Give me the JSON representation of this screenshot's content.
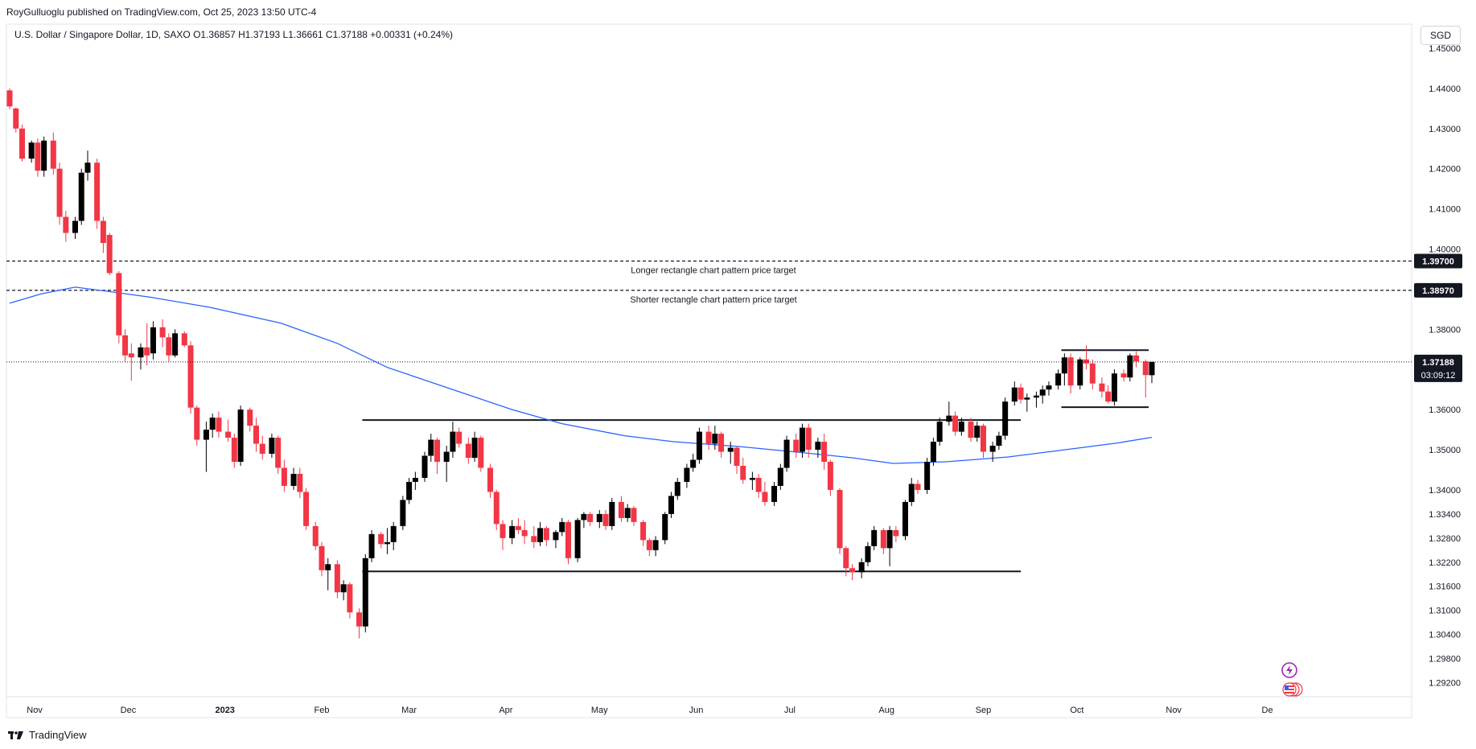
{
  "header": {
    "publisher_line": "RoyGulluoglu published on TradingView.com, Oct 25, 2023 13:50 UTC-4"
  },
  "legend": {
    "text": "U.S. Dollar / Singapore Dollar, 1D, SAXO  O1.36857  H1.37193  L1.36661  C1.37188  +0.00331 (+0.24%)"
  },
  "currency_button": "SGD",
  "footer": {
    "brand": "TradingView"
  },
  "colors": {
    "up": "#000000",
    "down": "#f23645",
    "ma": "#2962ff",
    "price_tag": "#131722"
  },
  "chart_data": {
    "type": "candlestick",
    "symbol": "U.S. Dollar / Singapore Dollar",
    "interval": "1D",
    "exchange": "SAXO",
    "ylim": [
      1.2885,
      1.456
    ],
    "y_ticks": [
      "1.45000",
      "1.44000",
      "1.43000",
      "1.42000",
      "1.41000",
      "1.40000",
      "1.38000",
      "1.36000",
      "1.35000",
      "1.34000",
      "1.33400",
      "1.32800",
      "1.32200",
      "1.31600",
      "1.31000",
      "1.30400",
      "1.29800",
      "1.29200"
    ],
    "x_ticks": [
      "Nov",
      "Dec",
      "2023",
      "Feb",
      "Mar",
      "Apr",
      "May",
      "Jun",
      "Jul",
      "Aug",
      "Sep",
      "Oct",
      "Nov",
      "De"
    ],
    "last_price": {
      "value": "1.37188",
      "countdown": "03:09:12"
    },
    "price_levels": [
      {
        "value": "1.39700",
        "label": "Longer rectangle chart pattern price target"
      },
      {
        "value": "1.38970",
        "label": "Shorter rectangle chart pattern price target"
      }
    ],
    "rectangles": [
      {
        "name": "long-rectangle",
        "from": "2023-02-14",
        "to": "2023-09-13",
        "top": 1.3574,
        "bottom": 1.3197
      },
      {
        "name": "short-rectangle",
        "from": "2023-09-26",
        "to": "2023-10-24",
        "top": 1.3748,
        "bottom": 1.3606
      }
    ],
    "moving_average": [
      [
        "2022-10-24",
        1.3865
      ],
      [
        "2022-11-03",
        1.3888
      ],
      [
        "2022-11-14",
        1.3905
      ],
      [
        "2022-11-24",
        1.3895
      ],
      [
        "2022-12-08",
        1.388
      ],
      [
        "2022-12-27",
        1.3855
      ],
      [
        "2023-01-19",
        1.3815
      ],
      [
        "2023-02-06",
        1.3765
      ],
      [
        "2023-02-22",
        1.3705
      ],
      [
        "2023-03-15",
        1.365
      ],
      [
        "2023-04-03",
        1.36
      ],
      [
        "2023-04-19",
        1.3565
      ],
      [
        "2023-05-09",
        1.3535
      ],
      [
        "2023-05-25",
        1.352
      ],
      [
        "2023-06-15",
        1.3508
      ],
      [
        "2023-07-06",
        1.3492
      ],
      [
        "2023-07-21",
        1.348
      ],
      [
        "2023-08-03",
        1.3466
      ],
      [
        "2023-08-20",
        1.347
      ],
      [
        "2023-09-09",
        1.3482
      ],
      [
        "2023-09-27",
        1.35
      ],
      [
        "2023-10-14",
        1.3517
      ],
      [
        "2023-10-25",
        1.3531
      ]
    ],
    "ohlc": [
      [
        "2022-10-24",
        1.4395,
        1.44,
        1.4348,
        1.4355
      ],
      [
        "2022-10-26",
        1.435,
        1.4352,
        1.429,
        1.43
      ],
      [
        "2022-10-28",
        1.43,
        1.431,
        1.4218,
        1.4225
      ],
      [
        "2022-10-31",
        1.4225,
        1.427,
        1.4215,
        1.4265
      ],
      [
        "2022-11-02",
        1.4265,
        1.4275,
        1.418,
        1.4195
      ],
      [
        "2022-11-04",
        1.4195,
        1.428,
        1.418,
        1.427
      ],
      [
        "2022-11-07",
        1.427,
        1.429,
        1.4185,
        1.42
      ],
      [
        "2022-11-09",
        1.42,
        1.4215,
        1.406,
        1.408
      ],
      [
        "2022-11-11",
        1.408,
        1.4095,
        1.4018,
        1.404
      ],
      [
        "2022-11-14",
        1.404,
        1.408,
        1.4025,
        1.407
      ],
      [
        "2022-11-16",
        1.407,
        1.42,
        1.406,
        1.419
      ],
      [
        "2022-11-18",
        1.419,
        1.4245,
        1.417,
        1.4215
      ],
      [
        "2022-11-21",
        1.4215,
        1.4225,
        1.405,
        1.407
      ],
      [
        "2022-11-23",
        1.407,
        1.408,
        1.399,
        1.4015
      ],
      [
        "2022-11-25",
        1.4035,
        1.404,
        1.3935,
        1.394
      ],
      [
        "2022-11-28",
        1.394,
        1.3945,
        1.3765,
        1.3785
      ],
      [
        "2022-11-30",
        1.3785,
        1.38,
        1.372,
        1.3735
      ],
      [
        "2022-12-02",
        1.374,
        1.3765,
        1.3672,
        1.373
      ],
      [
        "2022-12-05",
        1.373,
        1.3765,
        1.37,
        1.3755
      ],
      [
        "2022-12-07",
        1.3755,
        1.3815,
        1.371,
        1.3735
      ],
      [
        "2022-12-09",
        1.374,
        1.382,
        1.3725,
        1.3805
      ],
      [
        "2022-12-12",
        1.3805,
        1.3825,
        1.3755,
        1.378
      ],
      [
        "2022-12-14",
        1.378,
        1.379,
        1.372,
        1.3735
      ],
      [
        "2022-12-16",
        1.3735,
        1.38,
        1.373,
        1.379
      ],
      [
        "2022-12-19",
        1.379,
        1.3795,
        1.3755,
        1.376
      ],
      [
        "2022-12-21",
        1.376,
        1.377,
        1.359,
        1.3605
      ],
      [
        "2022-12-23",
        1.3605,
        1.361,
        1.351,
        1.3525
      ],
      [
        "2022-12-26",
        1.3525,
        1.357,
        1.3445,
        1.355
      ],
      [
        "2022-12-28",
        1.355,
        1.359,
        1.353,
        1.358
      ],
      [
        "2022-12-30",
        1.358,
        1.3595,
        1.353,
        1.3545
      ],
      [
        "2023-01-02",
        1.3545,
        1.3575,
        1.352,
        1.353
      ],
      [
        "2023-01-04",
        1.353,
        1.354,
        1.3455,
        1.347
      ],
      [
        "2023-01-06",
        1.347,
        1.361,
        1.346,
        1.36
      ],
      [
        "2023-01-09",
        1.36,
        1.3605,
        1.3545,
        1.356
      ],
      [
        "2023-01-11",
        1.356,
        1.358,
        1.3495,
        1.3515
      ],
      [
        "2023-01-13",
        1.3515,
        1.3535,
        1.3475,
        1.349
      ],
      [
        "2023-01-16",
        1.349,
        1.354,
        1.348,
        1.353
      ],
      [
        "2023-01-18",
        1.353,
        1.3535,
        1.344,
        1.3455
      ],
      [
        "2023-01-20",
        1.3455,
        1.3475,
        1.3395,
        1.341
      ],
      [
        "2023-01-23",
        1.341,
        1.3455,
        1.34,
        1.344
      ],
      [
        "2023-01-25",
        1.344,
        1.3455,
        1.338,
        1.3395
      ],
      [
        "2023-01-27",
        1.3395,
        1.3405,
        1.33,
        1.331
      ],
      [
        "2023-01-30",
        1.331,
        1.332,
        1.325,
        1.326
      ],
      [
        "2023-02-01",
        1.326,
        1.327,
        1.3185,
        1.32
      ],
      [
        "2023-02-03",
        1.32,
        1.323,
        1.315,
        1.3215
      ],
      [
        "2023-02-06",
        1.3215,
        1.3225,
        1.313,
        1.3145
      ],
      [
        "2023-02-08",
        1.3145,
        1.3175,
        1.3125,
        1.3165
      ],
      [
        "2023-02-10",
        1.3165,
        1.317,
        1.308,
        1.3095
      ],
      [
        "2023-02-13",
        1.3095,
        1.3105,
        1.303,
        1.306
      ],
      [
        "2023-02-15",
        1.306,
        1.324,
        1.3045,
        1.323
      ],
      [
        "2023-02-17",
        1.323,
        1.33,
        1.322,
        1.329
      ],
      [
        "2023-02-20",
        1.329,
        1.3295,
        1.3255,
        1.3265
      ],
      [
        "2023-02-22",
        1.3265,
        1.3305,
        1.324,
        1.327
      ],
      [
        "2023-02-24",
        1.327,
        1.332,
        1.325,
        1.331
      ],
      [
        "2023-02-27",
        1.331,
        1.3385,
        1.33,
        1.3375
      ],
      [
        "2023-03-01",
        1.3375,
        1.343,
        1.3365,
        1.342
      ],
      [
        "2023-03-03",
        1.342,
        1.3445,
        1.34,
        1.343
      ],
      [
        "2023-03-06",
        1.343,
        1.3495,
        1.342,
        1.3485
      ],
      [
        "2023-03-08",
        1.3485,
        1.354,
        1.347,
        1.3525
      ],
      [
        "2023-03-10",
        1.3525,
        1.353,
        1.344,
        1.347
      ],
      [
        "2023-03-13",
        1.347,
        1.351,
        1.342,
        1.3495
      ],
      [
        "2023-03-15",
        1.3495,
        1.357,
        1.348,
        1.3545
      ],
      [
        "2023-03-17",
        1.3545,
        1.3555,
        1.3505,
        1.3515
      ],
      [
        "2023-03-20",
        1.3515,
        1.353,
        1.3465,
        1.348
      ],
      [
        "2023-03-22",
        1.348,
        1.3545,
        1.347,
        1.353
      ],
      [
        "2023-03-24",
        1.353,
        1.3535,
        1.3445,
        1.3455
      ],
      [
        "2023-03-27",
        1.3455,
        1.3465,
        1.338,
        1.3395
      ],
      [
        "2023-03-29",
        1.3395,
        1.34,
        1.33,
        1.3315
      ],
      [
        "2023-03-31",
        1.3315,
        1.3325,
        1.325,
        1.328
      ],
      [
        "2023-04-03",
        1.328,
        1.3325,
        1.3265,
        1.331
      ],
      [
        "2023-04-05",
        1.331,
        1.333,
        1.329,
        1.33
      ],
      [
        "2023-04-07",
        1.33,
        1.3325,
        1.3265,
        1.3285
      ],
      [
        "2023-04-10",
        1.3285,
        1.331,
        1.3255,
        1.327
      ],
      [
        "2023-04-12",
        1.327,
        1.332,
        1.326,
        1.3305
      ],
      [
        "2023-04-14",
        1.3305,
        1.331,
        1.326,
        1.3275
      ],
      [
        "2023-04-17",
        1.3275,
        1.33,
        1.3255,
        1.3295
      ],
      [
        "2023-04-19",
        1.3295,
        1.333,
        1.3285,
        1.332
      ],
      [
        "2023-04-21",
        1.332,
        1.3325,
        1.3215,
        1.323
      ],
      [
        "2023-04-24",
        1.323,
        1.333,
        1.322,
        1.3325
      ],
      [
        "2023-04-26",
        1.3325,
        1.3345,
        1.3305,
        1.334
      ],
      [
        "2023-04-28",
        1.334,
        1.3345,
        1.331,
        1.332
      ],
      [
        "2023-05-01",
        1.332,
        1.335,
        1.3305,
        1.334
      ],
      [
        "2023-05-03",
        1.334,
        1.335,
        1.33,
        1.331
      ],
      [
        "2023-05-05",
        1.331,
        1.338,
        1.33,
        1.337
      ],
      [
        "2023-05-08",
        1.337,
        1.3385,
        1.332,
        1.333
      ],
      [
        "2023-05-10",
        1.333,
        1.3365,
        1.332,
        1.3355
      ],
      [
        "2023-05-12",
        1.3355,
        1.336,
        1.331,
        1.332
      ],
      [
        "2023-05-15",
        1.332,
        1.3325,
        1.326,
        1.3275
      ],
      [
        "2023-05-17",
        1.3275,
        1.328,
        1.3235,
        1.325
      ],
      [
        "2023-05-19",
        1.325,
        1.3285,
        1.3235,
        1.3275
      ],
      [
        "2023-05-22",
        1.3275,
        1.3345,
        1.3265,
        1.334
      ],
      [
        "2023-05-24",
        1.334,
        1.3395,
        1.333,
        1.3385
      ],
      [
        "2023-05-26",
        1.3385,
        1.343,
        1.3375,
        1.342
      ],
      [
        "2023-05-29",
        1.342,
        1.3465,
        1.3405,
        1.3455
      ],
      [
        "2023-05-31",
        1.3455,
        1.349,
        1.3445,
        1.3475
      ],
      [
        "2023-06-02",
        1.3475,
        1.3555,
        1.3465,
        1.3545
      ],
      [
        "2023-06-05",
        1.3545,
        1.356,
        1.35,
        1.3515
      ],
      [
        "2023-06-07",
        1.3515,
        1.356,
        1.35,
        1.354
      ],
      [
        "2023-06-09",
        1.354,
        1.3545,
        1.348,
        1.3495
      ],
      [
        "2023-06-12",
        1.3495,
        1.352,
        1.3465,
        1.3505
      ],
      [
        "2023-06-14",
        1.3505,
        1.351,
        1.344,
        1.346
      ],
      [
        "2023-06-16",
        1.346,
        1.348,
        1.3415,
        1.3425
      ],
      [
        "2023-06-19",
        1.3425,
        1.3445,
        1.34,
        1.343
      ],
      [
        "2023-06-21",
        1.343,
        1.344,
        1.338,
        1.3395
      ],
      [
        "2023-06-23",
        1.3395,
        1.342,
        1.336,
        1.337
      ],
      [
        "2023-06-26",
        1.337,
        1.342,
        1.336,
        1.341
      ],
      [
        "2023-06-28",
        1.341,
        1.3465,
        1.34,
        1.3455
      ],
      [
        "2023-06-30",
        1.3455,
        1.3535,
        1.3445,
        1.3525
      ],
      [
        "2023-07-03",
        1.3525,
        1.354,
        1.348,
        1.3495
      ],
      [
        "2023-07-05",
        1.3495,
        1.3565,
        1.348,
        1.3555
      ],
      [
        "2023-07-07",
        1.3555,
        1.3565,
        1.348,
        1.35
      ],
      [
        "2023-07-10",
        1.35,
        1.353,
        1.348,
        1.352
      ],
      [
        "2023-07-12",
        1.352,
        1.354,
        1.345,
        1.347
      ],
      [
        "2023-07-14",
        1.347,
        1.3475,
        1.3385,
        1.34
      ],
      [
        "2023-07-17",
        1.34,
        1.3405,
        1.324,
        1.3255
      ],
      [
        "2023-07-19",
        1.3255,
        1.326,
        1.3185,
        1.3205
      ],
      [
        "2023-07-21",
        1.3205,
        1.3215,
        1.3175,
        1.3195
      ],
      [
        "2023-07-24",
        1.3195,
        1.323,
        1.318,
        1.322
      ],
      [
        "2023-07-26",
        1.322,
        1.327,
        1.321,
        1.326
      ],
      [
        "2023-07-28",
        1.326,
        1.331,
        1.325,
        1.33
      ],
      [
        "2023-07-31",
        1.33,
        1.3305,
        1.324,
        1.3255
      ],
      [
        "2023-08-02",
        1.3255,
        1.331,
        1.321,
        1.33
      ],
      [
        "2023-08-04",
        1.33,
        1.331,
        1.327,
        1.3285
      ],
      [
        "2023-08-07",
        1.3285,
        1.3375,
        1.3275,
        1.337
      ],
      [
        "2023-08-09",
        1.337,
        1.343,
        1.336,
        1.3415
      ],
      [
        "2023-08-11",
        1.3415,
        1.3425,
        1.339,
        1.34
      ],
      [
        "2023-08-14",
        1.34,
        1.348,
        1.339,
        1.347
      ],
      [
        "2023-08-16",
        1.347,
        1.353,
        1.346,
        1.352
      ],
      [
        "2023-08-18",
        1.352,
        1.358,
        1.351,
        1.357
      ],
      [
        "2023-08-21",
        1.357,
        1.362,
        1.356,
        1.3585
      ],
      [
        "2023-08-23",
        1.3585,
        1.3595,
        1.3535,
        1.3545
      ],
      [
        "2023-08-25",
        1.3545,
        1.358,
        1.3535,
        1.357
      ],
      [
        "2023-08-28",
        1.357,
        1.358,
        1.352,
        1.353
      ],
      [
        "2023-08-30",
        1.353,
        1.357,
        1.352,
        1.356
      ],
      [
        "2023-09-01",
        1.356,
        1.3565,
        1.348,
        1.3495
      ],
      [
        "2023-09-04",
        1.3495,
        1.352,
        1.347,
        1.351
      ],
      [
        "2023-09-06",
        1.351,
        1.3545,
        1.35,
        1.3535
      ],
      [
        "2023-09-08",
        1.3535,
        1.363,
        1.3525,
        1.362
      ],
      [
        "2023-09-11",
        1.362,
        1.367,
        1.361,
        1.3655
      ],
      [
        "2023-09-13",
        1.3655,
        1.3665,
        1.3615,
        1.3625
      ],
      [
        "2023-09-15",
        1.3625,
        1.364,
        1.3595,
        1.363
      ],
      [
        "2023-09-18",
        1.363,
        1.3645,
        1.3605,
        1.3635
      ],
      [
        "2023-09-20",
        1.3635,
        1.366,
        1.3615,
        1.365
      ],
      [
        "2023-09-22",
        1.365,
        1.367,
        1.3635,
        1.366
      ],
      [
        "2023-09-25",
        1.366,
        1.37,
        1.365,
        1.369
      ],
      [
        "2023-09-27",
        1.369,
        1.374,
        1.366,
        1.373
      ],
      [
        "2023-09-29",
        1.373,
        1.374,
        1.364,
        1.366
      ],
      [
        "2023-10-02",
        1.366,
        1.373,
        1.365,
        1.3725
      ],
      [
        "2023-10-04",
        1.3725,
        1.376,
        1.37,
        1.3715
      ],
      [
        "2023-10-06",
        1.3715,
        1.3725,
        1.365,
        1.3665
      ],
      [
        "2023-10-09",
        1.3665,
        1.368,
        1.363,
        1.3645
      ],
      [
        "2023-10-11",
        1.3645,
        1.366,
        1.3615,
        1.362
      ],
      [
        "2023-10-13",
        1.362,
        1.37,
        1.361,
        1.369
      ],
      [
        "2023-10-16",
        1.369,
        1.37,
        1.367,
        1.368
      ],
      [
        "2023-10-18",
        1.368,
        1.374,
        1.367,
        1.3735
      ],
      [
        "2023-10-20",
        1.3735,
        1.3745,
        1.3705,
        1.372
      ],
      [
        "2023-10-23",
        1.372,
        1.3725,
        1.363,
        1.3686
      ],
      [
        "2023-10-25",
        1.36857,
        1.37193,
        1.36661,
        1.37188
      ]
    ]
  }
}
